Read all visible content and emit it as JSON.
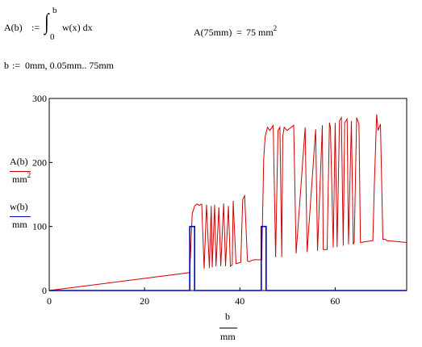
{
  "worksheet": {
    "def_lhs": "A(b)",
    "assign_op": ":=",
    "integral_upper": "b",
    "integral_lower": "0",
    "integrand": "w(x) dx",
    "result_lhs": "A(75mm)",
    "result_eq": "=",
    "result_value": "75",
    "result_unit": "mm",
    "result_unit_exp": "2",
    "range_lhs": "b",
    "range_op": ":=",
    "range_rhs": "0mm, 0.05mm.. 75mm"
  },
  "chart_data": {
    "type": "line",
    "xlim": [
      0,
      75
    ],
    "ylim": [
      0,
      300
    ],
    "x_ticks": [
      "0",
      "20",
      "40",
      "60"
    ],
    "y_ticks": [
      "0",
      "100",
      "200",
      "300"
    ],
    "xlabel_num": "b",
    "xlabel_den": "mm",
    "ylabel_1_num": "A(b)",
    "ylabel_1_den": "mm",
    "ylabel_1_den_exp": "2",
    "ylabel_2_num": "w(b)",
    "ylabel_2_den": "mm",
    "grid": false,
    "series": [
      {
        "color": "#d00000",
        "x": [
          0,
          29.5,
          30,
          30.5,
          31,
          31.5,
          32,
          32.5,
          33,
          33.6,
          34,
          34.2,
          34.7,
          35,
          35.6,
          36,
          36.6,
          37,
          37.6,
          38,
          38.4,
          38.6,
          39.2,
          40.2,
          40.6,
          41,
          41.6,
          42,
          42.5,
          43,
          44.6,
          45,
          45.3,
          45.8,
          46.3,
          47,
          47.5,
          48,
          48.4,
          48.8,
          49,
          49.3,
          49.9,
          51.3,
          51.8,
          53.7,
          54.1,
          55.9,
          56.3,
          57.3,
          57.5,
          58.3,
          58.8,
          59,
          59.6,
          60,
          60.4,
          60.9,
          61.3,
          61.7,
          62,
          62.5,
          62.8,
          63.4,
          63.8,
          64,
          64.5,
          65,
          65.3,
          67.9,
          68.2,
          68.7,
          69,
          69.5,
          70,
          70.5,
          70.8,
          75
        ],
        "y": [
          0,
          28,
          120,
          132,
          135,
          133,
          135,
          34,
          134,
          35,
          132,
          36,
          134,
          38,
          130,
          38,
          136,
          38,
          132,
          38,
          40,
          140,
          42,
          44,
          142,
          148,
          46,
          45,
          47,
          48,
          48,
          205,
          240,
          255,
          250,
          258,
          52,
          250,
          255,
          52,
          240,
          255,
          250,
          258,
          58,
          255,
          60,
          252,
          62,
          258,
          64,
          64,
          262,
          255,
          67,
          262,
          68,
          265,
          270,
          70,
          262,
          268,
          72,
          265,
          72,
          75,
          270,
          260,
          75,
          78,
          160,
          275,
          250,
          260,
          80,
          80,
          78,
          75
        ]
      },
      {
        "color": "#0000c8",
        "x": [
          0,
          29.5,
          29.5,
          30.5,
          30.5,
          44.5,
          44.5,
          45.5,
          45.5,
          75
        ],
        "y": [
          0,
          0,
          100,
          100,
          0,
          0,
          100,
          100,
          0,
          0
        ]
      }
    ]
  }
}
